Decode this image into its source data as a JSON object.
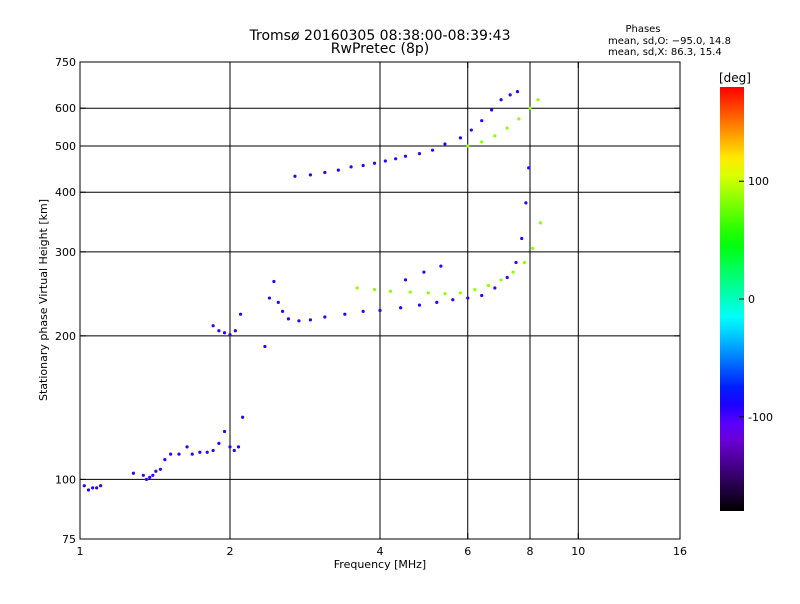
{
  "chart_data": {
    "type": "scatter",
    "title": "Tromsø 20160305 08:38:00-08:39:43",
    "subtitle": "RwPretec (8p)",
    "xlabel": "Frequency [MHz]",
    "ylabel": "Stationary phase Virtual Height [km]",
    "x_scale": "log",
    "y_scale": "log",
    "xlim": [
      1,
      16
    ],
    "ylim": [
      75,
      750
    ],
    "x_ticks": [
      1,
      2,
      4,
      6,
      8,
      10,
      16
    ],
    "x_tick_labels": [
      "1",
      "2",
      "4",
      "6",
      "8",
      "10",
      "16"
    ],
    "y_ticks": [
      75,
      100,
      200,
      300,
      400,
      500,
      600,
      750
    ],
    "y_tick_labels": [
      "75",
      "100",
      "200",
      "300",
      "400",
      "500",
      "600",
      "750"
    ],
    "x_grid": [
      2,
      4,
      6,
      8,
      10
    ],
    "y_grid": [
      100,
      200,
      300,
      400,
      500,
      600
    ],
    "grid": true,
    "stats": {
      "heading": "Phases",
      "line_o": "mean, sd,O: −95.0, 14.8",
      "line_x": "mean, sd,X:  86.3, 15.4"
    },
    "colorbar": {
      "label": "[deg]",
      "min": -180,
      "max": 180,
      "ticks": [
        100,
        0,
        -100
      ],
      "tick_labels": [
        "100",
        "0",
        "-100"
      ]
    },
    "colors": {
      "grid": "#000000",
      "background": "#ffffff"
    },
    "series": [
      {
        "mode": "O",
        "phase": -95,
        "points": [
          [
            1.02,
            97
          ],
          [
            1.04,
            95
          ],
          [
            1.06,
            96
          ],
          [
            1.08,
            96
          ],
          [
            1.1,
            97
          ],
          [
            1.28,
            103
          ],
          [
            1.34,
            102
          ],
          [
            1.36,
            100
          ],
          [
            1.38,
            101
          ],
          [
            1.4,
            102
          ],
          [
            1.42,
            104
          ],
          [
            1.45,
            105
          ],
          [
            1.48,
            110
          ],
          [
            1.52,
            113
          ],
          [
            1.58,
            113
          ],
          [
            1.64,
            117
          ],
          [
            1.68,
            113
          ],
          [
            1.74,
            114
          ],
          [
            1.8,
            114
          ],
          [
            1.85,
            115
          ],
          [
            1.9,
            119
          ],
          [
            1.95,
            126
          ],
          [
            2.0,
            117
          ],
          [
            2.04,
            115
          ],
          [
            2.08,
            117
          ],
          [
            2.12,
            135
          ],
          [
            1.85,
            210
          ],
          [
            1.9,
            205
          ],
          [
            1.95,
            203
          ],
          [
            2.0,
            201
          ],
          [
            2.05,
            205
          ],
          [
            2.1,
            222
          ],
          [
            2.35,
            190
          ],
          [
            2.4,
            240
          ],
          [
            2.45,
            260
          ],
          [
            2.5,
            235
          ],
          [
            2.55,
            225
          ],
          [
            2.62,
            217
          ],
          [
            2.75,
            215
          ],
          [
            2.9,
            216
          ],
          [
            3.1,
            219
          ],
          [
            3.4,
            222
          ],
          [
            3.7,
            225
          ],
          [
            4.0,
            226
          ],
          [
            4.4,
            229
          ],
          [
            4.8,
            232
          ],
          [
            5.2,
            235
          ],
          [
            5.6,
            238
          ],
          [
            6.0,
            240
          ],
          [
            6.4,
            243
          ],
          [
            6.8,
            252
          ],
          [
            7.2,
            265
          ],
          [
            7.5,
            285
          ],
          [
            7.7,
            320
          ],
          [
            7.85,
            380
          ],
          [
            7.95,
            450
          ],
          [
            4.5,
            262
          ],
          [
            4.9,
            272
          ],
          [
            5.3,
            280
          ],
          [
            2.7,
            432
          ],
          [
            2.9,
            435
          ],
          [
            3.1,
            440
          ],
          [
            3.3,
            445
          ],
          [
            3.5,
            452
          ],
          [
            3.7,
            455
          ],
          [
            3.9,
            460
          ],
          [
            4.1,
            465
          ],
          [
            4.3,
            470
          ],
          [
            4.5,
            476
          ],
          [
            4.8,
            482
          ],
          [
            5.1,
            490
          ],
          [
            5.4,
            505
          ],
          [
            5.8,
            520
          ],
          [
            6.1,
            540
          ],
          [
            6.4,
            565
          ],
          [
            6.7,
            595
          ],
          [
            7.0,
            625
          ],
          [
            7.3,
            640
          ],
          [
            7.55,
            650
          ]
        ]
      },
      {
        "mode": "X",
        "phase": 86,
        "points": [
          [
            3.6,
            252
          ],
          [
            3.9,
            250
          ],
          [
            4.2,
            248
          ],
          [
            4.6,
            247
          ],
          [
            5.0,
            246
          ],
          [
            5.4,
            245
          ],
          [
            5.8,
            246
          ],
          [
            6.2,
            250
          ],
          [
            6.6,
            255
          ],
          [
            7.0,
            262
          ],
          [
            7.4,
            272
          ],
          [
            7.8,
            285
          ],
          [
            8.1,
            305
          ],
          [
            8.4,
            345
          ],
          [
            6.0,
            500
          ],
          [
            6.4,
            510
          ],
          [
            6.8,
            525
          ],
          [
            7.2,
            545
          ],
          [
            7.6,
            570
          ],
          [
            8.0,
            600
          ],
          [
            8.3,
            625
          ]
        ]
      }
    ]
  }
}
